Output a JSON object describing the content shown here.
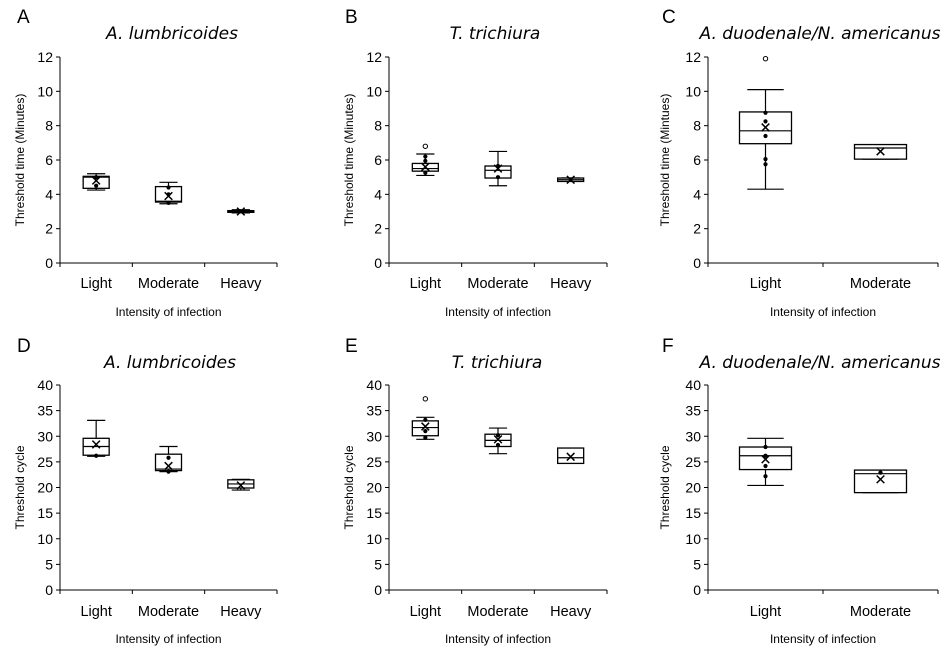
{
  "chart_data": [
    {
      "type": "box",
      "panel": "A",
      "title": "A. lumbricoides",
      "ylabel": "Threshold time (Minutes)",
      "xlabel": "Intensity of infection",
      "ylim": [
        0,
        12
      ],
      "yticks": [
        0,
        2,
        4,
        6,
        8,
        10,
        12
      ],
      "categories": [
        "Light",
        "Moderate",
        "Heavy"
      ],
      "boxes": [
        {
          "min": 4.25,
          "q1": 4.35,
          "median": 5.0,
          "q3": 5.05,
          "max": 5.2,
          "mean": 4.8,
          "outliers": [],
          "points": [
            4.5,
            5.0
          ]
        },
        {
          "min": 3.45,
          "q1": 3.55,
          "median": 3.6,
          "q3": 4.45,
          "max": 4.7,
          "mean": 3.9,
          "outliers": [],
          "points": [
            4.0,
            4.4,
            3.5
          ]
        },
        {
          "min": 2.92,
          "q1": 2.95,
          "median": 3.0,
          "q3": 3.05,
          "max": 3.1,
          "mean": 3.0,
          "outliers": [],
          "points": []
        }
      ]
    },
    {
      "type": "box",
      "panel": "B",
      "title": "T. trichiura",
      "ylabel": "Threshold time (Minutes)",
      "xlabel": "Intensity of infection",
      "ylim": [
        0,
        12
      ],
      "yticks": [
        0,
        2,
        4,
        6,
        8,
        10,
        12
      ],
      "categories": [
        "Light",
        "Moderate",
        "Heavy"
      ],
      "boxes": [
        {
          "min": 5.1,
          "q1": 5.35,
          "median": 5.5,
          "q3": 5.8,
          "max": 6.35,
          "mean": 5.6,
          "outliers": [
            6.8
          ],
          "points": [
            5.25,
            5.95,
            6.2
          ]
        },
        {
          "min": 4.5,
          "q1": 4.95,
          "median": 5.4,
          "q3": 5.65,
          "max": 6.5,
          "mean": 5.5,
          "outliers": [],
          "points": [
            5.0,
            5.65
          ]
        },
        {
          "min": 4.75,
          "q1": 4.75,
          "median": 4.85,
          "q3": 4.95,
          "max": 4.95,
          "mean": 4.85,
          "outliers": [],
          "points": []
        }
      ]
    },
    {
      "type": "box",
      "panel": "C",
      "title": "A. duodenale/N. americanus",
      "ylabel": "Threshold time (Mintues)",
      "xlabel": "Intensity of infection",
      "ylim": [
        0,
        12
      ],
      "yticks": [
        0,
        2,
        4,
        6,
        8,
        10,
        12
      ],
      "categories": [
        "Light",
        "Moderate"
      ],
      "boxes": [
        {
          "min": 4.3,
          "q1": 6.95,
          "median": 7.7,
          "q3": 8.8,
          "max": 10.1,
          "mean": 7.9,
          "outliers": [
            11.9
          ],
          "points": [
            5.75,
            6.05,
            7.4,
            8.25,
            8.75
          ]
        },
        {
          "min": 6.05,
          "q1": 6.05,
          "median": 6.7,
          "q3": 6.9,
          "max": 6.9,
          "mean": 6.5,
          "outliers": [],
          "points": []
        }
      ]
    },
    {
      "type": "box",
      "panel": "D",
      "title": "A. lumbricoides",
      "ylabel": "Threshold cycle",
      "xlabel": "Intensity of infection",
      "ylim": [
        0,
        40
      ],
      "yticks": [
        0,
        5,
        10,
        15,
        20,
        25,
        30,
        35,
        40
      ],
      "categories": [
        "Light",
        "Moderate",
        "Heavy"
      ],
      "boxes": [
        {
          "min": 26.1,
          "q1": 26.3,
          "median": 28.0,
          "q3": 29.6,
          "max": 33.1,
          "mean": 28.4,
          "outliers": [],
          "points": [
            26.2
          ]
        },
        {
          "min": 23.1,
          "q1": 23.3,
          "median": 23.6,
          "q3": 26.5,
          "max": 28.0,
          "mean": 24.2,
          "outliers": [],
          "points": [
            25.8,
            23.1
          ]
        },
        {
          "min": 19.5,
          "q1": 19.9,
          "median": 20.7,
          "q3": 21.5,
          "max": 21.6,
          "mean": 20.4,
          "outliers": [],
          "points": []
        }
      ]
    },
    {
      "type": "box",
      "panel": "E",
      "title": "T. trichiura",
      "ylabel": "Threshold cycle",
      "xlabel": "Intensity of infection",
      "ylim": [
        0,
        40
      ],
      "yticks": [
        0,
        5,
        10,
        15,
        20,
        25,
        30,
        35,
        40
      ],
      "categories": [
        "Light",
        "Moderate",
        "Heavy"
      ],
      "boxes": [
        {
          "min": 29.4,
          "q1": 30.1,
          "median": 31.7,
          "q3": 33.0,
          "max": 33.7,
          "mean": 31.9,
          "outliers": [
            37.3
          ],
          "points": [
            29.7,
            33.2,
            31.0
          ]
        },
        {
          "min": 26.6,
          "q1": 28.0,
          "median": 29.2,
          "q3": 30.4,
          "max": 31.6,
          "mean": 29.4,
          "outliers": [],
          "points": [
            28.3,
            30.2
          ]
        },
        {
          "min": 24.7,
          "q1": 24.7,
          "median": 25.8,
          "q3": 27.7,
          "max": 27.7,
          "mean": 26.0,
          "outliers": [],
          "points": []
        }
      ]
    },
    {
      "type": "box",
      "panel": "F",
      "title": "A. duodenale/N. americanus",
      "ylabel": "Threshold cycle",
      "xlabel": "Intensity of infection",
      "ylim": [
        0,
        40
      ],
      "yticks": [
        0,
        5,
        10,
        15,
        20,
        25,
        30,
        35,
        40
      ],
      "categories": [
        "Light",
        "Moderate"
      ],
      "boxes": [
        {
          "min": 20.4,
          "q1": 23.5,
          "median": 26.2,
          "q3": 27.9,
          "max": 29.6,
          "mean": 25.5,
          "outliers": [],
          "points": [
            22.2,
            24.2,
            26.2,
            27.9
          ]
        },
        {
          "min": 19.0,
          "q1": 19.0,
          "median": 22.7,
          "q3": 23.4,
          "max": 23.4,
          "mean": 21.6,
          "outliers": [],
          "points": [
            22.9
          ]
        }
      ]
    }
  ]
}
